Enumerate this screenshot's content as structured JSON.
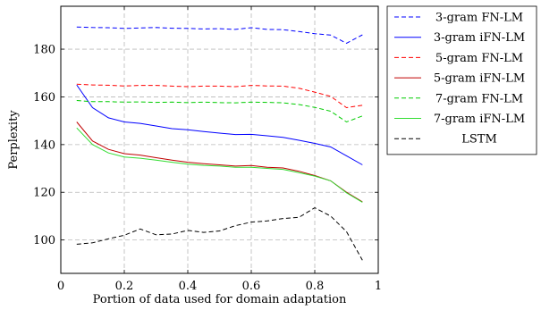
{
  "chart_data": {
    "type": "line",
    "title": "",
    "xlabel": "Portion of data used for domain adaptation",
    "ylabel": "Perplexity",
    "xlim": [
      0,
      1
    ],
    "ylim": [
      86,
      198
    ],
    "xticks": [
      0,
      0.2,
      0.4,
      0.6,
      0.8,
      1
    ],
    "xtick_labels": [
      "0",
      "0.2",
      "0.4",
      "0.6",
      "0.8",
      "1"
    ],
    "yticks": [
      100,
      120,
      140,
      160,
      180
    ],
    "ytick_labels": [
      "100",
      "120",
      "140",
      "160",
      "180"
    ],
    "grid": true,
    "legend_position": "right",
    "series": [
      {
        "name": "3-gram FN-LM",
        "color": "#0000ff",
        "dash": "dashed",
        "x": [
          0.05,
          0.1,
          0.15,
          0.2,
          0.25,
          0.3,
          0.35,
          0.4,
          0.45,
          0.5,
          0.55,
          0.6,
          0.65,
          0.7,
          0.75,
          0.8,
          0.85,
          0.9,
          0.95
        ],
        "y": [
          189.3,
          189.1,
          189.0,
          188.7,
          188.9,
          189.1,
          188.8,
          188.7,
          188.5,
          188.6,
          188.3,
          189.0,
          188.3,
          188.2,
          187.4,
          186.5,
          185.9,
          182.5,
          186.0
        ]
      },
      {
        "name": "3-gram iFN-LM",
        "color": "#0000ff",
        "dash": "solid",
        "x": [
          0.05,
          0.1,
          0.15,
          0.2,
          0.25,
          0.3,
          0.35,
          0.4,
          0.45,
          0.5,
          0.55,
          0.6,
          0.65,
          0.7,
          0.75,
          0.8,
          0.85,
          0.9,
          0.95
        ],
        "y": [
          165.0,
          155.5,
          151.2,
          149.5,
          148.9,
          147.8,
          146.7,
          146.2,
          145.5,
          144.8,
          144.2,
          144.3,
          143.7,
          143.0,
          141.8,
          140.5,
          139.0,
          135.3,
          131.5
        ]
      },
      {
        "name": "5-gram FN-LM",
        "color": "#ff0000",
        "dash": "dashed",
        "x": [
          0.05,
          0.1,
          0.15,
          0.2,
          0.25,
          0.3,
          0.35,
          0.4,
          0.45,
          0.5,
          0.55,
          0.6,
          0.65,
          0.7,
          0.75,
          0.8,
          0.85,
          0.9,
          0.95
        ],
        "y": [
          165.3,
          165.0,
          164.9,
          164.6,
          164.8,
          164.8,
          164.5,
          164.3,
          164.5,
          164.5,
          164.3,
          164.8,
          164.6,
          164.5,
          163.6,
          162.0,
          160.2,
          155.5,
          156.5
        ]
      },
      {
        "name": "5-gram iFN-LM",
        "color": "#c00000",
        "dash": "solid",
        "x": [
          0.05,
          0.1,
          0.15,
          0.2,
          0.25,
          0.3,
          0.35,
          0.4,
          0.45,
          0.5,
          0.55,
          0.6,
          0.65,
          0.7,
          0.75,
          0.8,
          0.85,
          0.9,
          0.95
        ],
        "y": [
          149.5,
          141.5,
          138.0,
          136.2,
          135.6,
          134.5,
          133.5,
          132.6,
          132.0,
          131.5,
          131.0,
          131.2,
          130.5,
          130.2,
          128.8,
          127.0,
          124.8,
          120.0,
          116.0
        ]
      },
      {
        "name": "7-gram FN-LM",
        "color": "#00cc00",
        "dash": "dashed",
        "x": [
          0.05,
          0.1,
          0.15,
          0.2,
          0.25,
          0.3,
          0.35,
          0.4,
          0.45,
          0.5,
          0.55,
          0.6,
          0.65,
          0.7,
          0.75,
          0.8,
          0.85,
          0.9,
          0.95
        ],
        "y": [
          158.5,
          158.0,
          158.0,
          157.8,
          157.9,
          157.7,
          157.8,
          157.6,
          157.8,
          157.6,
          157.5,
          157.8,
          157.7,
          157.5,
          156.8,
          155.6,
          154.0,
          149.5,
          152.0
        ]
      },
      {
        "name": "7-gram iFN-LM",
        "color": "#33dd33",
        "dash": "solid",
        "x": [
          0.05,
          0.1,
          0.15,
          0.2,
          0.25,
          0.3,
          0.35,
          0.4,
          0.45,
          0.5,
          0.55,
          0.6,
          0.65,
          0.7,
          0.75,
          0.8,
          0.85,
          0.9,
          0.95
        ],
        "y": [
          147.0,
          140.0,
          136.5,
          134.8,
          134.3,
          133.5,
          132.6,
          131.8,
          131.3,
          131.0,
          130.5,
          130.5,
          130.0,
          129.6,
          128.2,
          126.8,
          124.8,
          119.8,
          115.8
        ]
      },
      {
        "name": "LSTM",
        "color": "#000000",
        "dash": "dashed",
        "x": [
          0.05,
          0.1,
          0.15,
          0.2,
          0.25,
          0.3,
          0.35,
          0.4,
          0.45,
          0.5,
          0.55,
          0.6,
          0.65,
          0.7,
          0.75,
          0.8,
          0.85,
          0.9,
          0.95
        ],
        "y": [
          98.2,
          98.8,
          100.5,
          102.0,
          104.6,
          102.2,
          102.5,
          104.0,
          103.2,
          103.8,
          106.0,
          107.5,
          108.0,
          109.0,
          109.5,
          113.5,
          110.0,
          103.5,
          91.5
        ]
      }
    ]
  }
}
